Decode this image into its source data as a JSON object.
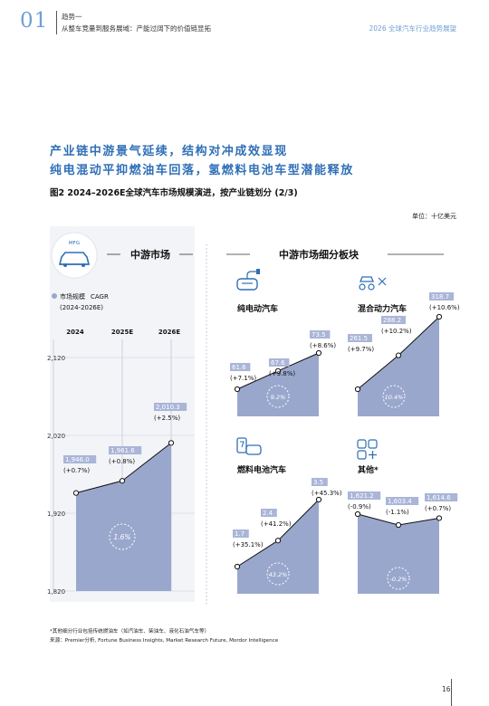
{
  "header": {
    "section_number": "01",
    "trend_label": "趋势一",
    "trend_title": "从整车竞量到服务展域：产能过阔下的价值链显拓",
    "report_title": "2026 全球汽车行业趋势展望"
  },
  "headline": {
    "line1": "产业链中游景气延续，结构对冲成效显现",
    "line2": "纯电混动平抑燃油车回落，氢燃料电池车型潜能释放"
  },
  "figure": {
    "title": "图2 2024–2026E全球汽车市场规模演进，按产业链划分 (2/3)",
    "unit": "单位：十亿美元"
  },
  "legend": {
    "size_label": "市场规模",
    "cagr_label": "CAGR",
    "cagr_period": "(2024-2026E)"
  },
  "icons": {
    "mfg_badge_text": "MFG"
  },
  "footnote": {
    "line1": "*其他细分行业包括传统燃油车（如汽油车、柴油车、液化石油气车等）",
    "line2": "来源：Premier分析, Fortune Business Insights, Market Research Future, Mordor Intelligence"
  },
  "page_number": "16",
  "colors": {
    "accent": "#2f6fb6",
    "area_fill": "#9aa7cd",
    "label_box": "#aab5d8",
    "light_blue": "#6f9fd6"
  },
  "chart_data": [
    {
      "type": "area",
      "title": "中游市场",
      "categories": [
        "2024",
        "2025E",
        "2026E"
      ],
      "values": [
        1946.0,
        1961.6,
        2010.3
      ],
      "value_labels": [
        "1,946.0",
        "1,961.6",
        "2,010.3"
      ],
      "growth_labels": [
        "(+0.7%)",
        "(+0.8%)",
        "(+2.5%)"
      ],
      "cagr": "1.6%",
      "ylim": [
        1820,
        2120
      ],
      "yticks": [
        1820,
        1920,
        2020,
        2120
      ],
      "ytick_labels": [
        "1,820",
        "1,920",
        "2,020",
        "2,120"
      ],
      "grid": true
    },
    {
      "section_title": "中游市场细分板块",
      "type": "area",
      "title": "纯电动汽车",
      "icon": "ev-plug-car-icon",
      "categories": [
        "2024",
        "2025E",
        "2026E"
      ],
      "values": [
        61.6,
        67.6,
        73.5
      ],
      "value_labels": [
        "61.6",
        "67.6",
        "73.5"
      ],
      "growth_labels": [
        "(+7.1%)",
        "(+9.8%)",
        "(+8.6%)"
      ],
      "cagr": "9.2%"
    },
    {
      "type": "area",
      "title": "混合动力汽车",
      "icon": "hybrid-car-icon",
      "categories": [
        "2024",
        "2025E",
        "2026E"
      ],
      "values": [
        261.5,
        288.2,
        318.7
      ],
      "value_labels": [
        "261.5",
        "288.2",
        "318.7"
      ],
      "growth_labels": [
        "(+9.7%)",
        "(+10.2%)",
        "(+10.6%)"
      ],
      "cagr": "10.4%"
    },
    {
      "type": "area",
      "title": "燃料电池汽车",
      "icon": "fuel-cell-car-icon",
      "categories": [
        "2024",
        "2025E",
        "2026E"
      ],
      "values": [
        1.7,
        2.4,
        3.5
      ],
      "value_labels": [
        "1.7",
        "2.4",
        "3.5"
      ],
      "growth_labels": [
        "(+35.1%)",
        "(+41.2%)",
        "(+45.3%)"
      ],
      "cagr": "43.2%"
    },
    {
      "type": "area",
      "title": "其他*",
      "icon": "grid-other-icon",
      "categories": [
        "2024",
        "2025E",
        "2026E"
      ],
      "values": [
        1621.2,
        1603.4,
        1614.6
      ],
      "value_labels": [
        "1,621.2",
        "1,603.4",
        "1,614.6"
      ],
      "growth_labels": [
        "(-0.9%)",
        "(-1.1%)",
        "(+0.7%)"
      ],
      "cagr": "-0.2%"
    }
  ]
}
